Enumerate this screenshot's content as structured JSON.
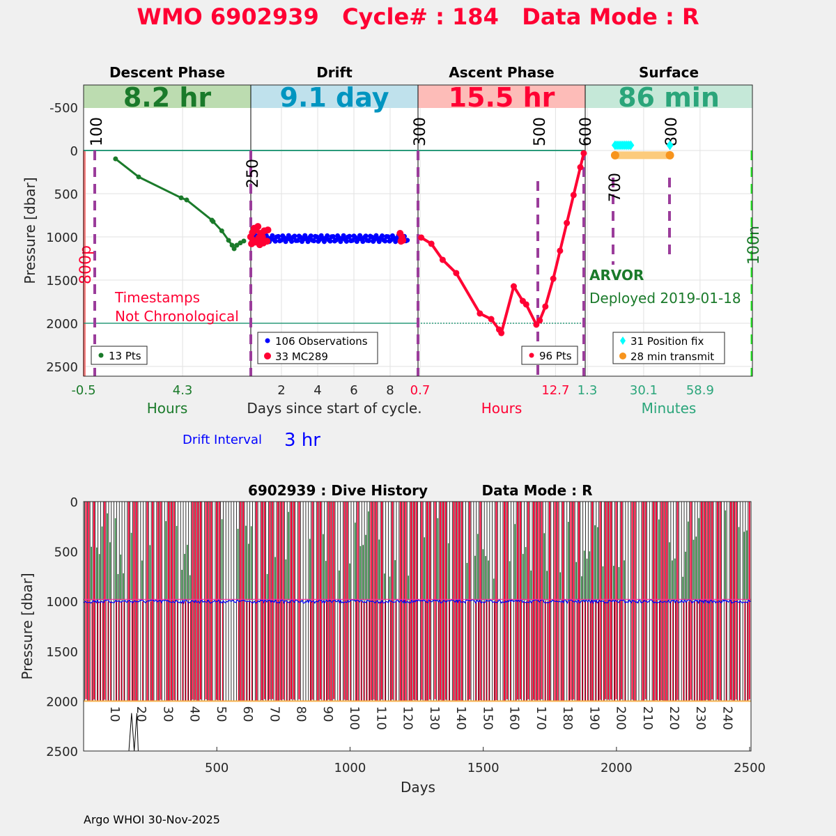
{
  "title": "WMO 6902939   Cycle# : 184   Data Mode : R",
  "footer": "Argo WHOI 30-Nov-2025",
  "colors": {
    "descent": "#1a7a2a",
    "drift": "#0095c0",
    "ascent": "#ff0033",
    "surface": "#2aa57a",
    "purple": "#9b3d9b",
    "obs": "#0000ff",
    "mc": "#ff0033",
    "fix": "#00ffff",
    "transmit": "#f7941d"
  },
  "chart_data": [
    {
      "type": "line",
      "name": "cycle-profile",
      "ylabel": "Pressure [dbar]",
      "ylim": [
        -760,
        2610
      ],
      "yticks": [
        -500,
        0,
        500,
        1000,
        1500,
        2000,
        2500
      ],
      "panels": [
        {
          "key": "descent",
          "header": "Descent Phase",
          "duration": "8.2 hr",
          "xlabel": "Hours",
          "xticks": [
            {
              "v": -0.5,
              "label": "-0.5"
            },
            {
              "v": 4.3,
              "label": "4.3"
            }
          ],
          "legend": "13 Pts",
          "points": [
            [
              1.05,
              97
            ],
            [
              2.17,
              306
            ],
            [
              4.23,
              548
            ],
            [
              4.5,
              573
            ],
            [
              5.72,
              806
            ],
            [
              5.78,
              823
            ],
            [
              6.2,
              930
            ],
            [
              6.53,
              1040
            ],
            [
              6.7,
              1097
            ],
            [
              6.8,
              1137
            ],
            [
              6.93,
              1097
            ],
            [
              7.1,
              1070
            ],
            [
              7.27,
              1048
            ]
          ]
        },
        {
          "key": "drift",
          "header": "Drift",
          "duration": "9.1 day",
          "xlabel": "Days since start of cycle.",
          "xticks": [
            {
              "v": 2,
              "label": "2"
            },
            {
              "v": 4,
              "label": "4"
            },
            {
              "v": 6,
              "label": "6"
            },
            {
              "v": 8,
              "label": "8"
            }
          ],
          "legend_obs": "106 Observations",
          "legend_mc": "33 MC289",
          "observations": {
            "count": 106,
            "start_day": 0.35,
            "end_day": 8.95,
            "pmin": 985,
            "pmax": 1055
          },
          "mc289": [
            [
              0.3,
              1000
            ],
            [
              0.35,
              1080
            ],
            [
              0.4,
              950
            ],
            [
              0.45,
              1040
            ],
            [
              0.5,
              900
            ],
            [
              0.55,
              1060
            ],
            [
              0.6,
              920
            ],
            [
              0.65,
              1050
            ],
            [
              0.7,
              880
            ],
            [
              0.75,
              1010
            ],
            [
              0.8,
              1090
            ],
            [
              0.85,
              960
            ],
            [
              0.9,
              1040
            ],
            [
              0.95,
              1000
            ],
            [
              1.0,
              1070
            ],
            [
              1.05,
              930
            ],
            [
              1.2,
              1050
            ],
            [
              1.25,
              920
            ],
            [
              8.55,
              960
            ],
            [
              8.6,
              1050
            ],
            [
              8.65,
              1000
            ],
            [
              8.7,
              1040
            ]
          ]
        },
        {
          "key": "ascent",
          "header": "Ascent Phase",
          "duration": "15.5 hr",
          "xlabel": "Hours",
          "xticks": [
            {
              "v": 0.7,
              "label": "0.7"
            },
            {
              "v": 12.7,
              "label": "12.7"
            }
          ],
          "legend": "96 Pts",
          "points": [
            [
              0.8,
              1008
            ],
            [
              1.7,
              1080
            ],
            [
              2.7,
              1266
            ],
            [
              3.9,
              1419
            ],
            [
              6.0,
              1887
            ],
            [
              7.0,
              1952
            ],
            [
              7.7,
              2073
            ],
            [
              7.9,
              2113
            ],
            [
              9.0,
              1573
            ],
            [
              9.8,
              1742
            ],
            [
              10.1,
              1782
            ],
            [
              11.0,
              2016
            ],
            [
              11.3,
              1968
            ],
            [
              11.8,
              1806
            ],
            [
              12.5,
              1484
            ],
            [
              13.1,
              1161
            ],
            [
              13.7,
              839
            ],
            [
              14.3,
              516
            ],
            [
              14.9,
              194
            ],
            [
              15.2,
              32
            ]
          ]
        },
        {
          "key": "surface",
          "header": "Surface",
          "duration": "86 min",
          "xlabel": "Minutes",
          "xticks": [
            {
              "v": 1.3,
              "label": "1.3"
            },
            {
              "v": 30.1,
              "label": "30.1"
            },
            {
              "v": 58.9,
              "label": "58.9"
            }
          ],
          "legend_fix": "31 Position fix",
          "legend_transmit": "28 min transmit",
          "fix_range": [
            15.5,
            23.5
          ],
          "fix_extra": 43.5,
          "fix_pressure": -60,
          "transmit_range": [
            15.5,
            43.5
          ],
          "transmit_pressure": 55
        }
      ],
      "markers": [
        {
          "label": "100",
          "color": "#000"
        },
        {
          "label": "250",
          "color": "#000"
        },
        {
          "label": "300",
          "color": "#000"
        },
        {
          "label": "500",
          "color": "#000"
        },
        {
          "label": "600",
          "color": "#000"
        },
        {
          "label": "700",
          "color": "#000"
        },
        {
          "label": "800",
          "color": "#000"
        },
        {
          "label": "800p",
          "color": "#ff0033"
        },
        {
          "label": "100n",
          "color": "#1a7a2a"
        }
      ],
      "annotations": {
        "warning_line1": "Timestamps",
        "warning_line2": "Not Chronological",
        "float_type": "ARVOR",
        "deployed": "Deployed 2019-01-18"
      },
      "drift_interval_label": "Drift Interval",
      "drift_interval_value": "3 hr"
    },
    {
      "type": "line",
      "name": "dive-history",
      "title_left": "6902939 : Dive History",
      "title_right": "Data Mode : R",
      "xlabel": "Days",
      "ylabel": "Pressure [dbar]",
      "xlim": [
        0,
        2505
      ],
      "ylim": [
        0,
        2500
      ],
      "xticks": [
        500,
        1000,
        1500,
        2000,
        2500
      ],
      "yticks": [
        0,
        500,
        1000,
        1500,
        2000,
        2500
      ],
      "cycle_labels": [
        10,
        20,
        30,
        40,
        50,
        60,
        70,
        80,
        90,
        100,
        110,
        120,
        130,
        140,
        150,
        160,
        170,
        180,
        190,
        200,
        210,
        220,
        230,
        240
      ],
      "cycle_interval_days": 10,
      "park_pressure": 1000,
      "profile_pressure": 2000
    }
  ]
}
